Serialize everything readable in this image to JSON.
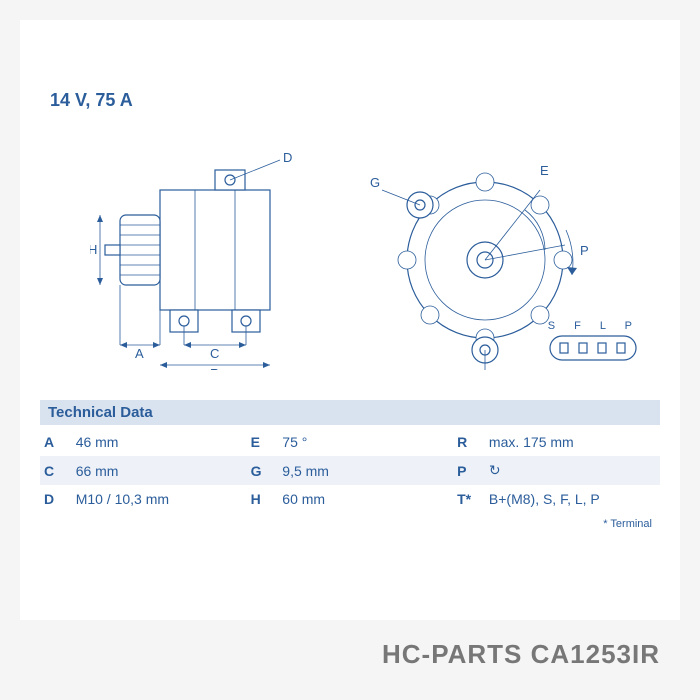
{
  "spec_header": "14 V, 75 A",
  "section_title": "Technical Data",
  "connector_pins": "S  F  L  P",
  "rows": [
    {
      "k1": "A",
      "v1": "46 mm",
      "k2": "E",
      "v2": "75 °",
      "k3": "R",
      "v3": "max. 175 mm"
    },
    {
      "k1": "C",
      "v1": "66 mm",
      "k2": "G",
      "v2": "9,5 mm",
      "k3": "P",
      "v3": "↻"
    },
    {
      "k1": "D",
      "v1": "M10 / 10,3 mm",
      "k2": "H",
      "v2": "60 mm",
      "k3": "T*",
      "v3": "B+(M8), S, F, L, P"
    }
  ],
  "footnote": "* Terminal",
  "brand": "HC-PARTS CA1253IR",
  "dim_labels": {
    "A": "A",
    "C": "C",
    "D": "D",
    "E": "E",
    "G": "G",
    "H": "H",
    "R": "R",
    "P": "P"
  },
  "colors": {
    "line": "#2b5d9b",
    "header_bg": "#d9e2ef",
    "row_alt": "#eef2f8",
    "page_bg": "#ffffff",
    "body_bg": "#f5f5f5",
    "brand": "#777777"
  }
}
